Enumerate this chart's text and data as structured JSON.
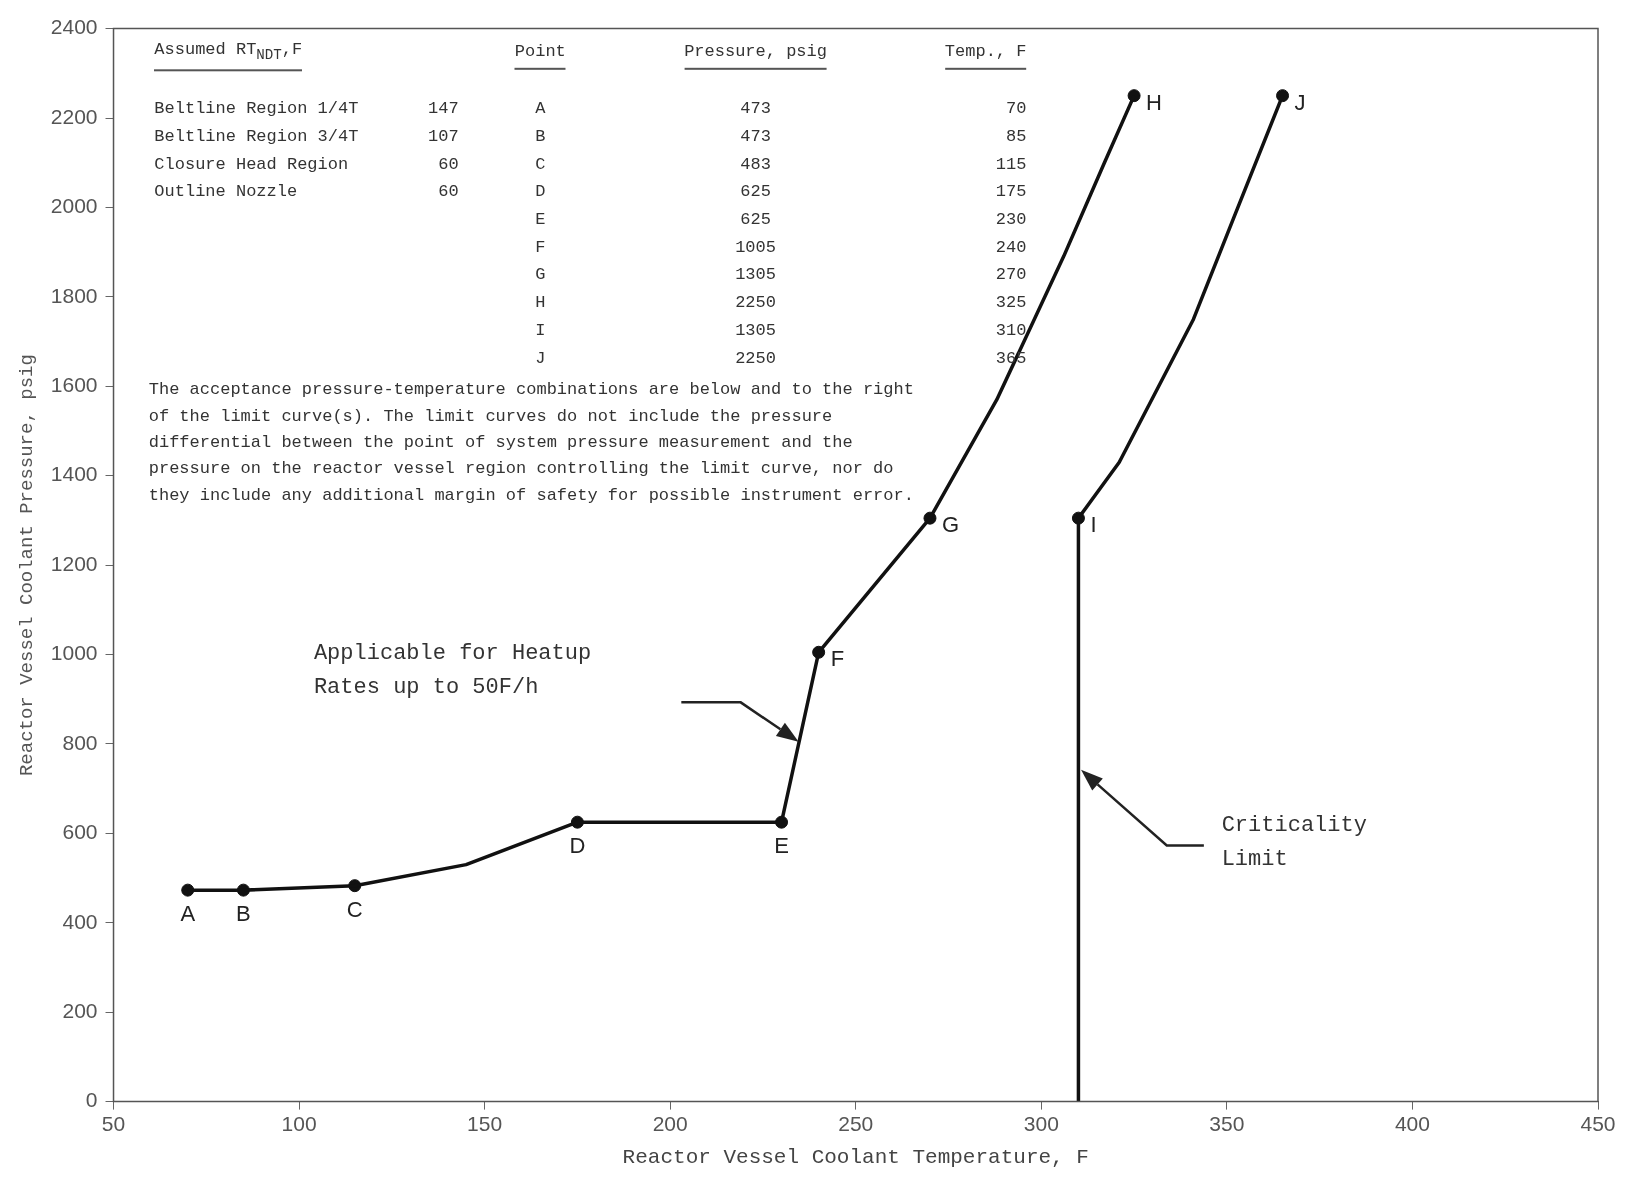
{
  "chart_data": {
    "type": "line",
    "xlabel": "Reactor Vessel Coolant Temperature, F",
    "ylabel": "Reactor Vessel Coolant Pressure, psig",
    "xlim": [
      50,
      450
    ],
    "xticks": [
      50,
      100,
      150,
      200,
      250,
      300,
      350,
      400,
      450
    ],
    "ylim": [
      0,
      2400
    ],
    "yticks": [
      0,
      200,
      400,
      600,
      800,
      1000,
      1200,
      1400,
      1600,
      1800,
      2000,
      2200,
      2400
    ],
    "grid": false,
    "legend": false,
    "line_style": "solid",
    "series": [
      {
        "color": "#111111",
        "x": [
          70,
          85,
          115,
          145,
          175,
          230,
          240,
          270,
          288,
          306,
          317,
          325
        ],
        "values": [
          473,
          473,
          483,
          530,
          625,
          625,
          1005,
          1305,
          1570,
          1890,
          2100,
          2250
        ]
      },
      {
        "color": "#111111",
        "x": [
          310,
          310,
          321,
          341,
          352,
          365
        ],
        "values": [
          0,
          1305,
          1430,
          1750,
          1980,
          2250
        ]
      },
      {
        "type": "scatter",
        "color": "#111111",
        "marker": "circle",
        "x": [
          70,
          85,
          115,
          175,
          230,
          240,
          270,
          325,
          310,
          365
        ],
        "values": [
          473,
          473,
          483,
          625,
          625,
          1005,
          1305,
          2250,
          1305,
          2250
        ]
      }
    ],
    "annotations": [
      "Assumed RT$_{NDT}$,F",
      "Beltline Region 1/4T",
      "147",
      "Beltline Region 3/4T",
      "107",
      "Closure Head Region",
      "60",
      "Outline Nozzle",
      "60",
      "Point",
      "Pressure, psig",
      "Temp., F",
      "A",
      "473",
      "70",
      "B",
      "473",
      "85",
      "C",
      "483",
      "115",
      "D",
      "625",
      "175",
      "E",
      "625",
      "230",
      "F",
      "1005",
      "240",
      "G",
      "1305",
      "270",
      "H",
      "2250",
      "325",
      "I",
      "1305",
      "310",
      "J",
      "2250",
      "365",
      "The acceptance pressure-temperature combinations are below and to the right of the limit curve(s). The limit curves do not include the pressure differential between the point of system pressure measurement and the pressure on the reactor vessel region controlling the limit curve, nor do they include any additional margin of safety for possible instrument error.",
      "Applicable for Heatup Rates up to 50F/h",
      "Criticality Limit",
      {
        "text": "A",
        "x": 70,
        "y": 473
      },
      {
        "text": "B",
        "x": 85,
        "y": 473
      },
      {
        "text": "C",
        "x": 115,
        "y": 483
      },
      {
        "text": "D",
        "x": 175,
        "y": 625
      },
      {
        "text": "E",
        "x": 230,
        "y": 625
      },
      {
        "text": "F",
        "x": 240,
        "y": 1005
      },
      {
        "text": "G",
        "x": 270,
        "y": 1305
      },
      {
        "text": "H",
        "x": 325,
        "y": 2250
      },
      {
        "text": "I",
        "x": 310,
        "y": 1305
      },
      {
        "text": "J",
        "x": 365,
        "y": 2250
      }
    ]
  }
}
